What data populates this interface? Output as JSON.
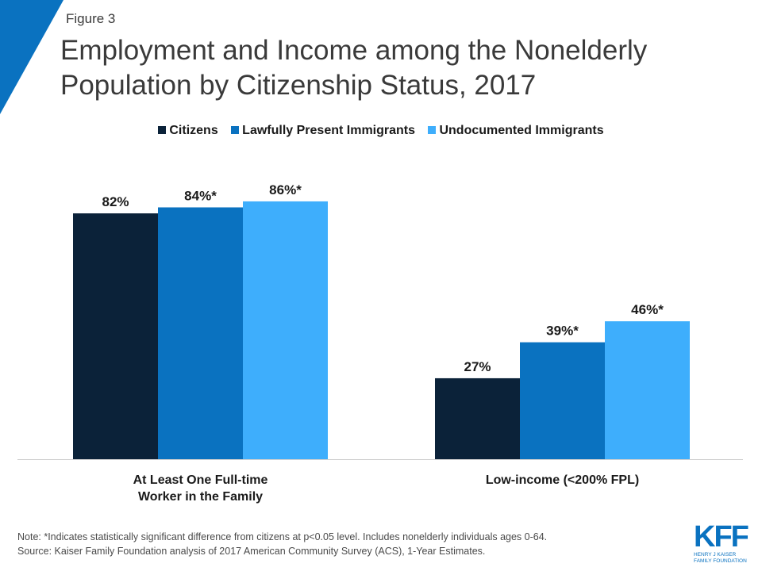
{
  "header": {
    "figure_label": "Figure 3",
    "title_line1": "Employment and Income among the Nonelderly",
    "title_line2": "Population by Citizenship Status, 2017",
    "accent_color": "#0a72c0"
  },
  "chart_data": {
    "type": "bar",
    "categories": [
      [
        "At Least One Full-time",
        "Worker in the Family"
      ],
      [
        "Low-income (<200% FPL)"
      ]
    ],
    "series": [
      {
        "name": "Citizens",
        "color": "#0b2239",
        "values": [
          82,
          27
        ],
        "labels": [
          "82%",
          "27%"
        ]
      },
      {
        "name": "Lawfully Present Immigrants",
        "color": "#0a72c0",
        "values": [
          84,
          39
        ],
        "labels": [
          "84%*",
          "39%*"
        ]
      },
      {
        "name": "Undocumented Immigrants",
        "color": "#3eaefc",
        "values": [
          86,
          46
        ],
        "labels": [
          "86%*",
          "46%*"
        ]
      }
    ],
    "ylim": [
      0,
      100
    ],
    "grid": false,
    "legend_position": "top"
  },
  "footnote": {
    "note": "Note: *Indicates statistically significant difference from citizens at p<0.05 level. Includes nonelderly individuals ages 0-64.",
    "source": "Source: Kaiser Family Foundation analysis of 2017 American Community Survey (ACS), 1-Year Estimates."
  },
  "logo": {
    "mark": "KFF",
    "line1": "HENRY J KAISER",
    "line2": "FAMILY FOUNDATION"
  }
}
